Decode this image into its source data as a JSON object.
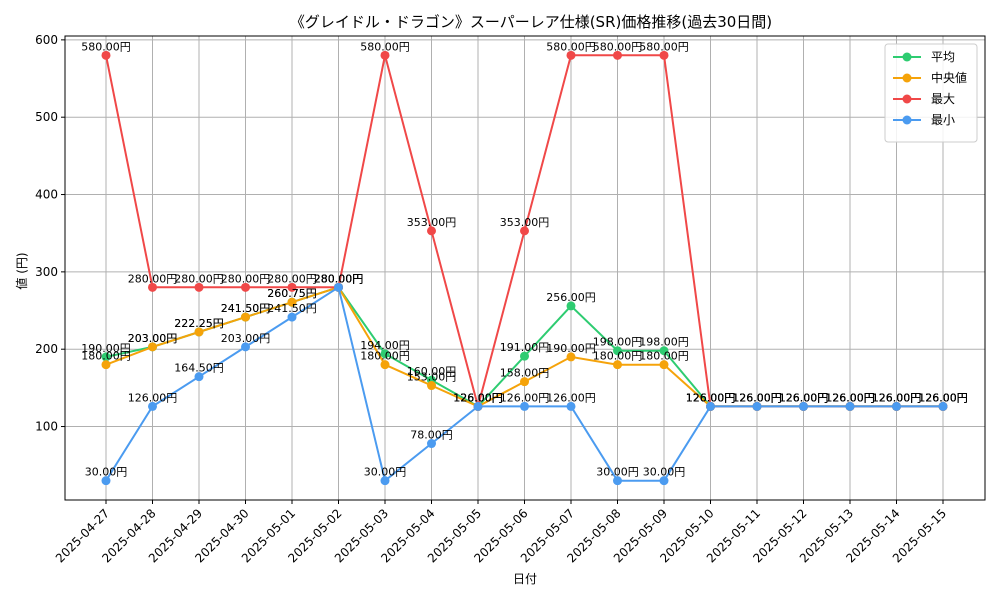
{
  "chart_data": {
    "type": "line",
    "title": "《グレイドル・ドラゴン》スーパーレア仕様(SR)価格推移(過去30日間)",
    "xlabel": "日付",
    "ylabel": "値 (円)",
    "ylim": [
      5,
      605
    ],
    "yticks": [
      100,
      200,
      300,
      400,
      500,
      600
    ],
    "grid": true,
    "legend_position": "top-right",
    "value_suffix": "円",
    "x": [
      "2025-04-27",
      "2025-04-28",
      "2025-04-29",
      "2025-04-30",
      "2025-05-01",
      "2025-05-02",
      "2025-05-03",
      "2025-05-04",
      "2025-05-05",
      "2025-05-06",
      "2025-05-07",
      "2025-05-08",
      "2025-05-09",
      "2025-05-10",
      "2025-05-11",
      "2025-05-12",
      "2025-05-13",
      "2025-05-14",
      "2025-05-15"
    ],
    "series": [
      {
        "name": "平均",
        "color": "#2ecc71",
        "values": [
          190,
          203,
          222.25,
          241.5,
          260.75,
          280,
          194,
          160,
          126,
          191,
          256,
          198,
          198,
          126,
          126,
          126,
          126,
          126,
          126
        ]
      },
      {
        "name": "中央値",
        "color": "#f5a30a",
        "values": [
          180,
          203,
          222.25,
          241.5,
          260.75,
          280,
          180,
          153,
          126,
          158,
          190,
          180,
          180,
          126,
          126,
          126,
          126,
          126,
          126
        ]
      },
      {
        "name": "最大",
        "color": "#f04848",
        "values": [
          580,
          280,
          280,
          280,
          280,
          280,
          580,
          353,
          126,
          353,
          580,
          580,
          580,
          126,
          126,
          126,
          126,
          126,
          126
        ]
      },
      {
        "name": "最小",
        "color": "#4b9bf0",
        "values": [
          30,
          126,
          164.5,
          203,
          241.5,
          280,
          30,
          78,
          126,
          126,
          126,
          30,
          30,
          126,
          126,
          126,
          126,
          126,
          126
        ]
      }
    ]
  }
}
